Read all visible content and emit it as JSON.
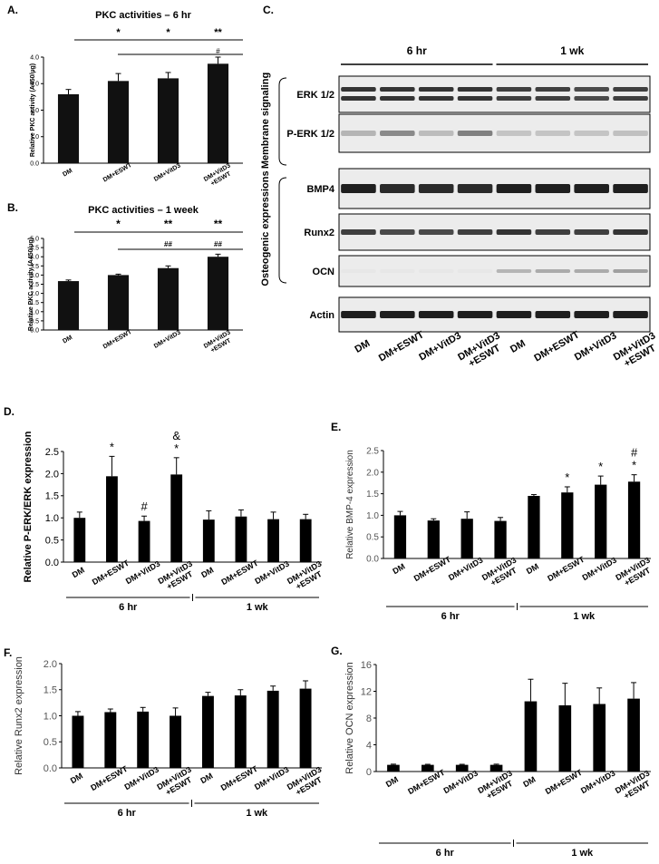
{
  "panels": {
    "A": {
      "label": "A.",
      "chart_data": {
        "type": "bar",
        "title": "PKC activities – 6 hr",
        "ylabel": "Relative PKC activity (A450/µg)",
        "ylim": [
          0,
          4.0
        ],
        "yticks": [
          "0.0",
          "1.0",
          "2.0",
          "3.0",
          "4.0"
        ],
        "categories": [
          "DM",
          "DM+ESWT",
          "DM+VitD3",
          "DM+VitD3\n+ESWT"
        ],
        "values": [
          2.6,
          3.1,
          3.2,
          3.75
        ],
        "errors": [
          0.18,
          0.28,
          0.22,
          0.25
        ],
        "bar_marks": [
          "",
          "",
          "",
          "#"
        ],
        "brackets": [
          {
            "marks": [
              "*",
              "*",
              "**"
            ]
          },
          {
            "marks": []
          }
        ],
        "bar_color": "#111111",
        "grid": false
      }
    },
    "B": {
      "label": "B.",
      "chart_data": {
        "type": "bar",
        "title": "PKC activities –  1 week",
        "ylabel": "Relative PKC activity (A450/µg)",
        "ylim": [
          0,
          5.0
        ],
        "yticks": [
          "0.0",
          "0.5",
          "1.0",
          "1.5",
          "2.0",
          "2.5",
          "3.0",
          "3.5",
          "4.0",
          "4.5",
          "5.0"
        ],
        "categories": [
          "DM",
          "DM+ESWT",
          "DM+VitD3",
          "DM+VitD3\n+ESWT"
        ],
        "values": [
          2.67,
          3.0,
          3.38,
          4.0
        ],
        "errors": [
          0.06,
          0.05,
          0.12,
          0.14
        ],
        "brackets": [
          {
            "marks": [
              "*",
              "**",
              "**"
            ]
          },
          {
            "marks": [
              "##",
              "##"
            ]
          }
        ],
        "bar_color": "#111111",
        "grid": false
      }
    },
    "C": {
      "label": "C.",
      "time_groups": [
        "6 hr",
        "1 wk"
      ],
      "section_labels": [
        "Membrane signaling",
        "Osteogenic expressions"
      ],
      "band_labels": [
        "ERK 1/2",
        "P-ERK 1/2",
        "BMP4",
        "Runx2",
        "OCN",
        "Actin"
      ],
      "lane_labels": [
        "DM",
        "DM+ESWT",
        "DM+VitD3",
        "DM+VitD3\n+ESWT",
        "DM",
        "DM+ESWT",
        "DM+VitD3",
        "DM+VitD3\n+ESWT"
      ]
    },
    "D": {
      "label": "D.",
      "chart_data": {
        "type": "bar",
        "ylabel": "Relative P-ERK/ERK expression",
        "ylim": [
          0,
          2.5
        ],
        "yticks": [
          "0.0",
          "0.5",
          "1.0",
          "1.5",
          "2.0",
          "2.5"
        ],
        "categories": [
          "DM",
          "DM+ESWT",
          "DM+VitD3",
          "DM+VitD3\n+ESWT",
          "DM",
          "DM+ESWT",
          "DM+VitD3",
          "DM+VitD3\n+ESWT"
        ],
        "values": [
          1.0,
          1.94,
          0.93,
          1.98,
          0.96,
          1.03,
          0.97,
          0.97
        ],
        "errors": [
          0.13,
          0.45,
          0.11,
          0.38,
          0.2,
          0.15,
          0.16,
          0.11
        ],
        "marks": [
          "",
          "*",
          "#",
          "&\n*",
          "",
          "",
          "",
          ""
        ],
        "groups": [
          "6 hr",
          "1 wk"
        ],
        "bar_color": "#000000",
        "grid": false
      }
    },
    "E": {
      "label": "E.",
      "chart_data": {
        "type": "bar",
        "ylabel": "Relative BMP-4 expression",
        "ylim": [
          0,
          2.5
        ],
        "yticks": [
          "0.0",
          "0.5",
          "1.0",
          "1.5",
          "2.0",
          "2.5"
        ],
        "categories": [
          "DM",
          "DM+ESWT",
          "DM+VitD3",
          "DM+VitD3\n+ESWT",
          "DM",
          "DM+ESWT",
          "DM+VitD3",
          "DM+VitD3\n+ESWT"
        ],
        "values": [
          1.0,
          0.88,
          0.92,
          0.87,
          1.45,
          1.53,
          1.71,
          1.78
        ],
        "errors": [
          0.09,
          0.04,
          0.16,
          0.08,
          0.03,
          0.13,
          0.2,
          0.16
        ],
        "marks": [
          "",
          "",
          "",
          "",
          "",
          "*",
          "*",
          "#\n*"
        ],
        "groups": [
          "6 hr",
          "1 wk"
        ],
        "bar_color": "#000000",
        "grid": false
      }
    },
    "F": {
      "label": "F.",
      "chart_data": {
        "type": "bar",
        "ylabel": "Relative Runx2 expression",
        "ylim": [
          0,
          2.0
        ],
        "yticks": [
          "0.0",
          "0.5",
          "1.0",
          "1.5",
          "2.0"
        ],
        "categories": [
          "DM",
          "DM+ESWT",
          "DM+VitD3",
          "DM+VitD3\n+ESWT",
          "DM",
          "DM+ESWT",
          "DM+VitD3",
          "DM+VitD3\n+ESWT"
        ],
        "values": [
          1.0,
          1.07,
          1.08,
          1.0,
          1.38,
          1.39,
          1.48,
          1.52
        ],
        "errors": [
          0.08,
          0.06,
          0.08,
          0.15,
          0.07,
          0.11,
          0.09,
          0.15
        ],
        "marks": [
          "",
          "",
          "",
          "",
          "",
          "",
          "",
          ""
        ],
        "groups": [
          "6 hr",
          "1 wk"
        ],
        "bar_color": "#000000",
        "grid": false
      }
    },
    "G": {
      "label": "G.",
      "chart_data": {
        "type": "bar",
        "ylabel": "Relative OCN expression",
        "ylim": [
          0,
          16
        ],
        "yticks": [
          "0",
          "4",
          "8",
          "12",
          "16"
        ],
        "categories": [
          "DM",
          "DM+ESWT",
          "DM+VitD3",
          "DM+VitD3\n+ESWT",
          "DM",
          "DM+ESWT",
          "DM+VitD3",
          "DM+VitD3\n+ESWT"
        ],
        "values": [
          1.0,
          1.0,
          1.0,
          1.0,
          10.5,
          9.9,
          10.1,
          10.9
        ],
        "errors": [
          0.1,
          0.08,
          0.08,
          0.1,
          3.3,
          3.3,
          2.4,
          2.4
        ],
        "marks": [
          "",
          "",
          "",
          "",
          "",
          "",
          "",
          ""
        ],
        "groups": [
          "6 hr",
          "1 wk"
        ],
        "bar_color": "#000000",
        "grid": false
      }
    }
  }
}
